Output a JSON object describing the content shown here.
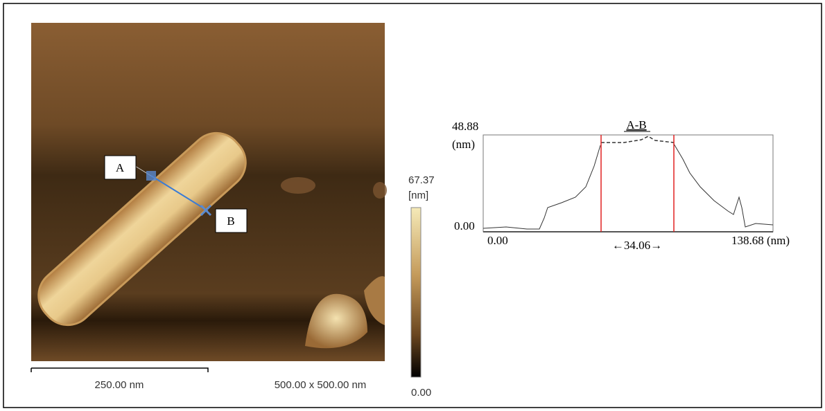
{
  "image": {
    "marker_a": "A",
    "marker_b": "B",
    "scale_bar": "250.00 nm",
    "scan_size": "500.00 x 500.00 nm"
  },
  "colorbar": {
    "max": "67.37",
    "unit": "[nm]",
    "min": "0.00"
  },
  "profile": {
    "title": "A-B",
    "y_max": "48.88",
    "y_unit": "(nm)",
    "y_min": "0.00",
    "x_min": "0.00",
    "width_label": "←34.06→",
    "x_max": "138.68 (nm)"
  }
}
